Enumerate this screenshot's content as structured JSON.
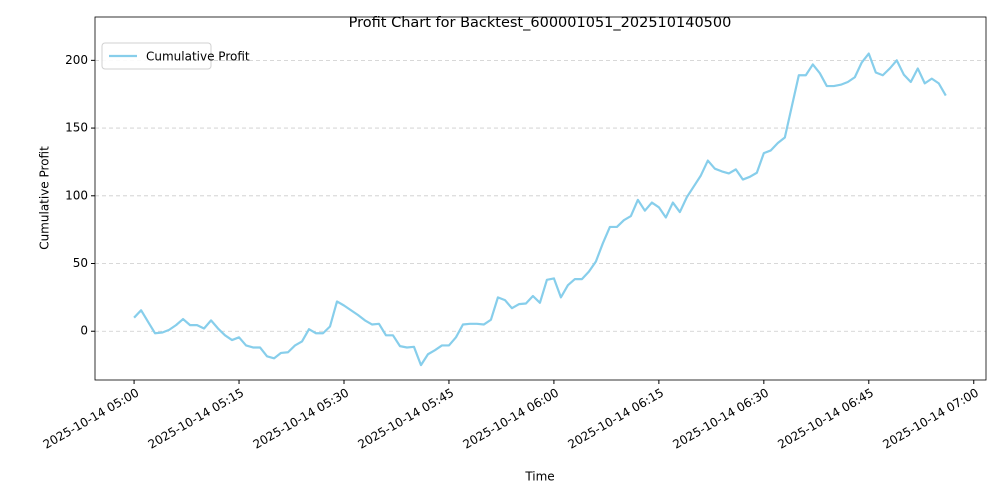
{
  "chart_data": {
    "type": "line",
    "title": "Profit Chart for Backtest_600001051_202510140500",
    "x_label": "Time",
    "y_label": "Cumulative Profit",
    "x": [
      "2025-10-14 05:00",
      "2025-10-14 05:01",
      "2025-10-14 05:02",
      "2025-10-14 05:03",
      "2025-10-14 05:04",
      "2025-10-14 05:05",
      "2025-10-14 05:06",
      "2025-10-14 05:07",
      "2025-10-14 05:08",
      "2025-10-14 05:09",
      "2025-10-14 05:10",
      "2025-10-14 05:11",
      "2025-10-14 05:12",
      "2025-10-14 05:13",
      "2025-10-14 05:14",
      "2025-10-14 05:15",
      "2025-10-14 05:16",
      "2025-10-14 05:17",
      "2025-10-14 05:18",
      "2025-10-14 05:19",
      "2025-10-14 05:20",
      "2025-10-14 05:21",
      "2025-10-14 05:22",
      "2025-10-14 05:23",
      "2025-10-14 05:24",
      "2025-10-14 05:25",
      "2025-10-14 05:26",
      "2025-10-14 05:27",
      "2025-10-14 05:28",
      "2025-10-14 05:29",
      "2025-10-14 05:30",
      "2025-10-14 05:31",
      "2025-10-14 05:32",
      "2025-10-14 05:33",
      "2025-10-14 05:34",
      "2025-10-14 05:35",
      "2025-10-14 05:36",
      "2025-10-14 05:37",
      "2025-10-14 05:38",
      "2025-10-14 05:39",
      "2025-10-14 05:40",
      "2025-10-14 05:41",
      "2025-10-14 05:42",
      "2025-10-14 05:43",
      "2025-10-14 05:44",
      "2025-10-14 05:45",
      "2025-10-14 05:46",
      "2025-10-14 05:47",
      "2025-10-14 05:48",
      "2025-10-14 05:49",
      "2025-10-14 05:50",
      "2025-10-14 05:51",
      "2025-10-14 05:52",
      "2025-10-14 05:53",
      "2025-10-14 05:54",
      "2025-10-14 05:55",
      "2025-10-14 05:56",
      "2025-10-14 05:57",
      "2025-10-14 05:58",
      "2025-10-14 05:59",
      "2025-10-14 06:00",
      "2025-10-14 06:01",
      "2025-10-14 06:02",
      "2025-10-14 06:03",
      "2025-10-14 06:04",
      "2025-10-14 06:05",
      "2025-10-14 06:06",
      "2025-10-14 06:07",
      "2025-10-14 06:08",
      "2025-10-14 06:09",
      "2025-10-14 06:10",
      "2025-10-14 06:11",
      "2025-10-14 06:12",
      "2025-10-14 06:13",
      "2025-10-14 06:14",
      "2025-10-14 06:15",
      "2025-10-14 06:16",
      "2025-10-14 06:17",
      "2025-10-14 06:18",
      "2025-10-14 06:19",
      "2025-10-14 06:20",
      "2025-10-14 06:21",
      "2025-10-14 06:22",
      "2025-10-14 06:23",
      "2025-10-14 06:24",
      "2025-10-14 06:25",
      "2025-10-14 06:26",
      "2025-10-14 06:27",
      "2025-10-14 06:28",
      "2025-10-14 06:29",
      "2025-10-14 06:30",
      "2025-10-14 06:31",
      "2025-10-14 06:32",
      "2025-10-14 06:33",
      "2025-10-14 06:34",
      "2025-10-14 06:35",
      "2025-10-14 06:36",
      "2025-10-14 06:37",
      "2025-10-14 06:38",
      "2025-10-14 06:39",
      "2025-10-14 06:40",
      "2025-10-14 06:41",
      "2025-10-14 06:42",
      "2025-10-14 06:43",
      "2025-10-14 06:44",
      "2025-10-14 06:45",
      "2025-10-14 06:46",
      "2025-10-14 06:47",
      "2025-10-14 06:48",
      "2025-10-14 06:49",
      "2025-10-14 06:50",
      "2025-10-14 06:51",
      "2025-10-14 06:52",
      "2025-10-14 06:53",
      "2025-10-14 06:54",
      "2025-10-14 06:55",
      "2025-10-14 06:56"
    ],
    "series": [
      {
        "name": "Cumulative Profit",
        "color": "#87ceeb",
        "values": [
          10,
          15.5,
          7,
          -1.5,
          -1,
          1,
          4.5,
          9,
          4.5,
          4.5,
          2,
          8,
          2,
          -3,
          -6.5,
          -4.5,
          -10.5,
          -12,
          -12,
          -18.5,
          -20,
          -16,
          -15.5,
          -10.5,
          -7.5,
          1.5,
          -1.5,
          -1.5,
          3.5,
          22,
          19,
          15.5,
          12,
          8,
          5,
          5.5,
          -3,
          -3,
          -11,
          -12,
          -11.5,
          -25,
          -17,
          -14,
          -10.5,
          -10.5,
          -4.5,
          5,
          5.5,
          5.5,
          5,
          8.5,
          25,
          23,
          17,
          20,
          20.5,
          26,
          21,
          38,
          39,
          25,
          34,
          38.5,
          38.5,
          44,
          51.5,
          65,
          77,
          77,
          82,
          85,
          97,
          89,
          95,
          91.5,
          84,
          95,
          88,
          99,
          107,
          115,
          126,
          120,
          118,
          116.5,
          119.5,
          112,
          114,
          117,
          131.5,
          133.5,
          139,
          143,
          166,
          189,
          189,
          197,
          190.5,
          181,
          181,
          182,
          184,
          187.5,
          198.5,
          205,
          191,
          189,
          194,
          200,
          189.5,
          184,
          194,
          183,
          186.5,
          183,
          174
        ]
      }
    ],
    "xlim": [
      "2025-10-14 04:54:25",
      "2025-10-14 07:01:45"
    ],
    "xticks": [
      "2025-10-14 05:00",
      "2025-10-14 05:15",
      "2025-10-14 05:30",
      "2025-10-14 05:45",
      "2025-10-14 06:00",
      "2025-10-14 06:15",
      "2025-10-14 06:30",
      "2025-10-14 06:45",
      "2025-10-14 07:00"
    ],
    "ylim": [
      -36,
      232
    ],
    "yticks": [
      0,
      50,
      100,
      150,
      200
    ],
    "grid": "y",
    "legend": "upper left"
  }
}
